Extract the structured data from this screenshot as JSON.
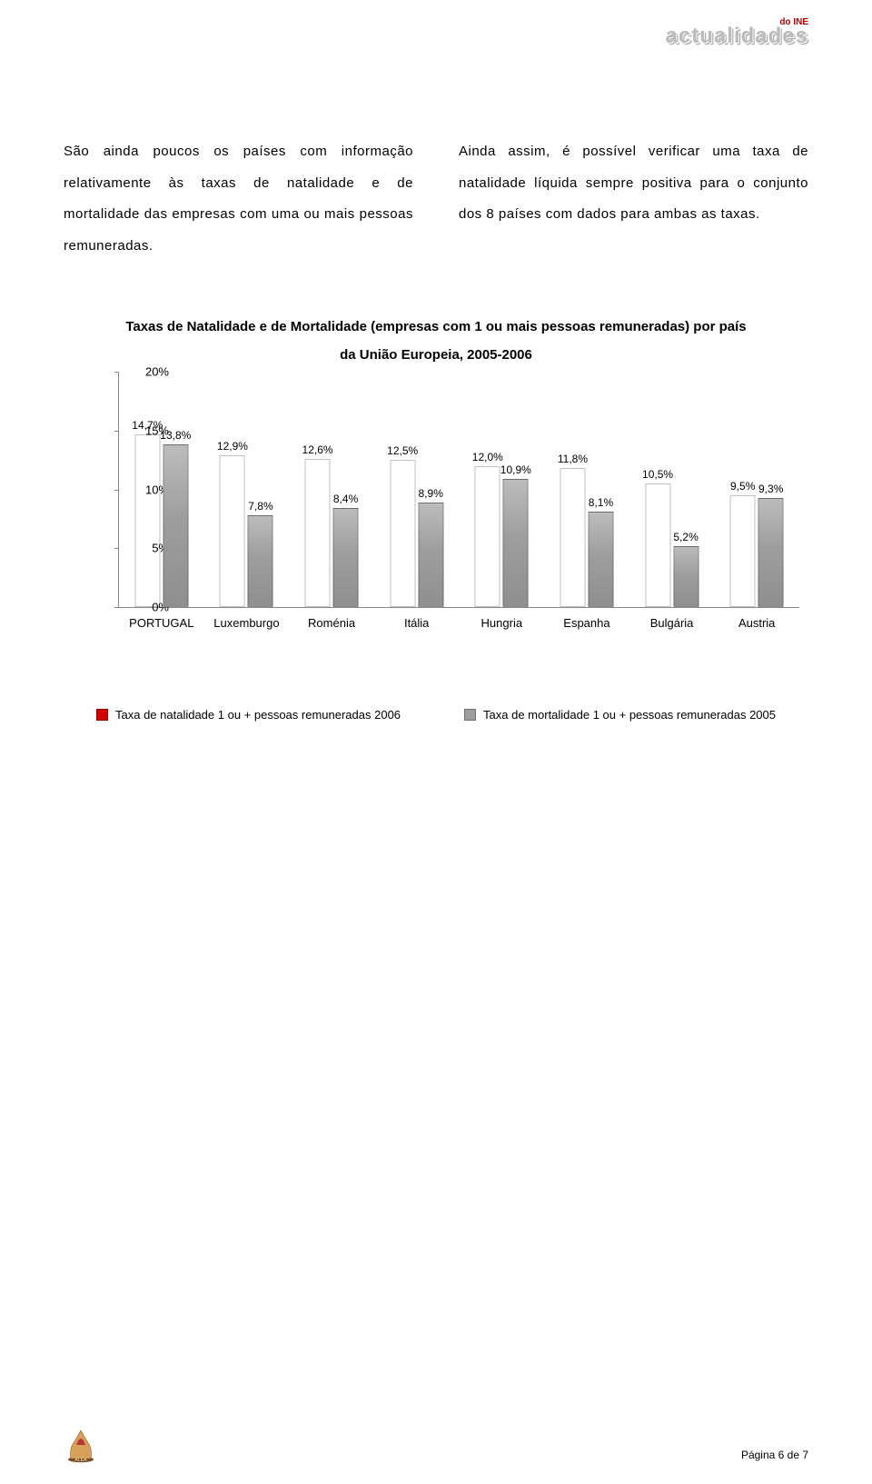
{
  "header": {
    "subtitle": "do INE",
    "title": "actualidades"
  },
  "para_left": "São ainda poucos os países com informação relativamente às taxas de natalidade e de mortalidade das empresas com uma ou mais pessoas remuneradas.",
  "para_right": "Ainda assim, é possível verificar uma taxa de natalidade líquida sempre positiva para o conjunto dos 8 países com dados para ambas as taxas.",
  "chart": {
    "title": "Taxas de Natalidade e de Mortalidade (empresas com 1 ou mais pessoas remuneradas) por país",
    "subtitle": "da União Europeia, 2005-2006",
    "type": "bar",
    "ylim": [
      0,
      20
    ],
    "yticks": [
      0,
      5,
      10,
      15,
      20
    ],
    "ytick_labels": [
      "0%",
      "5%",
      "10%",
      "15%",
      "20%"
    ],
    "categories": [
      "PORTUGAL",
      "Luxemburgo",
      "Roménia",
      "Itália",
      "Hungria",
      "Espanha",
      "Bulgária",
      "Austria"
    ],
    "series": [
      {
        "name": "Taxa de natalidade 1 ou + pessoas remuneradas 2006",
        "color": "#d20000",
        "values": [
          14.7,
          12.9,
          12.6,
          12.5,
          12.0,
          11.8,
          10.5,
          9.5
        ],
        "labels": [
          "14,7%",
          "12,9%",
          "12,6%",
          "12,5%",
          "12,0%",
          "11,8%",
          "10,5%",
          "9,5%"
        ]
      },
      {
        "name": "Taxa de mortalidade 1 ou + pessoas remuneradas 2005",
        "color": "#9e9e9e",
        "values": [
          13.8,
          7.8,
          8.4,
          8.9,
          10.9,
          8.1,
          5.2,
          9.3
        ],
        "labels": [
          "13,8%",
          "7,8%",
          "8,4%",
          "8,9%",
          "10,9%",
          "8,1%",
          "5,2%",
          "9,3%"
        ]
      }
    ],
    "grid_color": "#888888",
    "background_color": "#ffffff",
    "label_fontsize": 13
  },
  "footer": {
    "page": "Página 6 de 7",
    "icon_alt": "ALEA"
  },
  "colors": {
    "accent_red": "#d20000",
    "neutral_grey": "#9e9e9e",
    "logo_grey": "#bbbbbb",
    "logo_red": "#b00000"
  }
}
